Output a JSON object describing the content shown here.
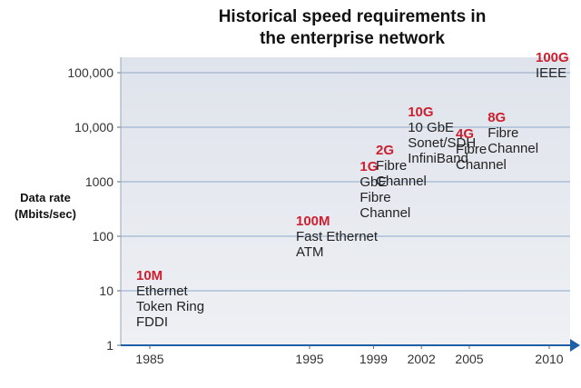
{
  "chart_data": {
    "type": "scatter",
    "title_lines": [
      "Historical speed requirements in",
      "the enterprise network"
    ],
    "ylabel_lines": [
      "Data rate",
      "(Mbits/sec)"
    ],
    "xlabel": "",
    "yscale": "log",
    "ylim": [
      1,
      100000
    ],
    "grid": true,
    "y_ticks": [
      {
        "value": 1,
        "label": "1"
      },
      {
        "value": 10,
        "label": "10"
      },
      {
        "value": 100,
        "label": "100"
      },
      {
        "value": 1000,
        "label": "1000"
      },
      {
        "value": 10000,
        "label": "10,000"
      },
      {
        "value": 100000,
        "label": "100,000"
      }
    ],
    "x_ticks": [
      "1985",
      "1995",
      "1999",
      "2002",
      "2005",
      "2010"
    ],
    "colors": {
      "speed": "#cc1f2f",
      "axis": "#1f5fa8",
      "plot_bg": "#e4e7ee"
    },
    "points": [
      {
        "x": "1985",
        "value": 10,
        "speed": "10M",
        "lines": [
          "Ethernet",
          "Token Ring",
          "FDDI"
        ]
      },
      {
        "x": "1995",
        "value": 100,
        "speed": "100M",
        "lines": [
          "Fast Ethernet",
          "ATM"
        ]
      },
      {
        "x": "1999",
        "value": 1000,
        "speed": "1G",
        "lines": [
          "GbE",
          "Fibre",
          "Channel"
        ]
      },
      {
        "x": "2000",
        "value": 2000,
        "speed": "2G",
        "lines": [
          "Fibre",
          "Channel"
        ]
      },
      {
        "x": "2002",
        "value": 10000,
        "speed": "10G",
        "lines": [
          "10 GbE",
          "Sonet/SDH",
          "InfiniBand"
        ]
      },
      {
        "x": "2005",
        "value": 4000,
        "speed": "4G",
        "lines": [
          "Fibre",
          "Channel"
        ]
      },
      {
        "x": "2007",
        "value": 8000,
        "speed": "8G",
        "lines": [
          "Fibre",
          "Channel"
        ]
      },
      {
        "x": "2010",
        "value": 100000,
        "speed": "100G",
        "lines": [
          "IEEE"
        ]
      }
    ]
  }
}
